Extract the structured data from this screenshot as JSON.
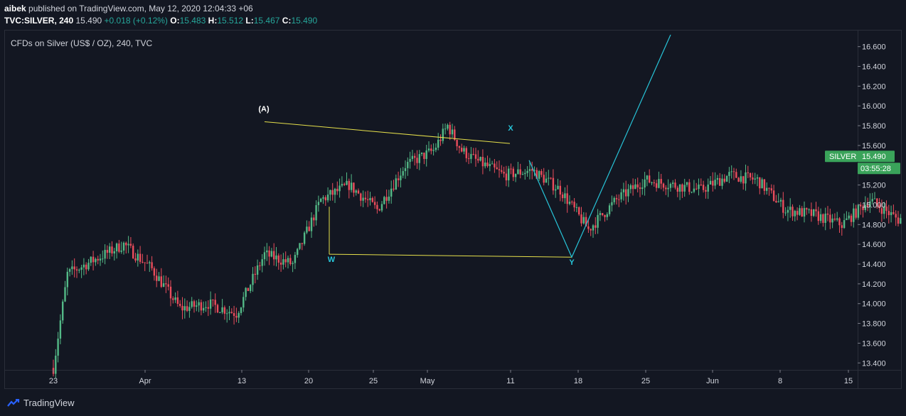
{
  "header": {
    "author": "aibek",
    "published_text": " published on TradingView.com, May 12, 2020 12:04:33 +06",
    "symbol": "TVC:SILVER, 240",
    "last": "15.490",
    "change": "+0.018 (+0.12%)",
    "o_label": "O:",
    "o_value": "15.483",
    "h_label": "H:",
    "h_value": "15.512",
    "l_label": "L:",
    "l_value": "15.467",
    "c_label": "C:",
    "c_value": "15.490"
  },
  "footer": {
    "brand": "TradingView"
  },
  "colors": {
    "background": "#131722",
    "up": "#26a69a",
    "up_candle": "#53b987",
    "down": "#eb4d5c",
    "wave_line": "#e6e04b",
    "projection": "#27c4d8",
    "price_badge": "#3aa35a"
  },
  "chart_data": {
    "type": "candlestick",
    "title": "CFDs on Silver (US$ / OZ), 240, TVC",
    "instrument": "SILVER",
    "y_ticks": [
      "16.600",
      "16.400",
      "16.200",
      "16.000",
      "15.800",
      "15.600",
      "15.400",
      "15.200",
      "15.000",
      "14.800",
      "14.600",
      "14.400",
      "14.200",
      "14.000",
      "13.800",
      "13.600",
      "13.400"
    ],
    "ylim": [
      13.33,
      16.77
    ],
    "x_ticks": [
      "23",
      "Apr",
      "13",
      "20",
      "25",
      "May",
      "11",
      "18",
      "25",
      "Jun",
      "8",
      "15"
    ],
    "price_label": "15.490",
    "countdown": "03:55:28",
    "price_path": [
      [
        "2020-03-23",
        13.35
      ],
      [
        "2020-03-24",
        14.3
      ],
      [
        "2020-03-26",
        14.45
      ],
      [
        "2020-03-28",
        14.6
      ],
      [
        "2020-03-30",
        14.35
      ],
      [
        "2020-04-01",
        13.95
      ],
      [
        "2020-04-03",
        14.0
      ],
      [
        "2020-04-05",
        13.9
      ],
      [
        "2020-04-07",
        14.5
      ],
      [
        "2020-04-09",
        14.4
      ],
      [
        "2020-04-11",
        15.05
      ],
      [
        "2020-04-13",
        15.2
      ],
      [
        "2020-04-15",
        14.95
      ],
      [
        "2020-04-17",
        15.4
      ],
      [
        "2020-04-19",
        15.55
      ],
      [
        "2020-04-20",
        15.8
      ],
      [
        "2020-04-21",
        15.55
      ],
      [
        "2020-04-22",
        15.45
      ],
      [
        "2020-04-24",
        15.3
      ],
      [
        "2020-04-26",
        15.35
      ],
      [
        "2020-04-28",
        15.15
      ],
      [
        "2020-04-30",
        14.75
      ],
      [
        "2020-05-02",
        15.05
      ],
      [
        "2020-05-04",
        15.25
      ],
      [
        "2020-05-06",
        15.2
      ],
      [
        "2020-05-08",
        15.15
      ],
      [
        "2020-05-10",
        15.3
      ],
      [
        "2020-05-12",
        15.25
      ],
      [
        "2020-05-14",
        14.95
      ],
      [
        "2020-05-16",
        14.9
      ],
      [
        "2020-05-18",
        14.8
      ],
      [
        "2020-05-20",
        15.05
      ],
      [
        "2020-05-22",
        14.85
      ],
      [
        "2020-05-24",
        15.0
      ],
      [
        "2020-05-26",
        15.45
      ],
      [
        "2020-05-28",
        15.55
      ],
      [
        "2020-05-30",
        15.5
      ],
      [
        "2020-06-01",
        15.49
      ]
    ],
    "annotations": [
      {
        "label": "(A)",
        "x": "2020-04-20",
        "y": 15.84,
        "color": "#ffffff"
      },
      {
        "label": "W",
        "x": "2020-04-30",
        "y": 14.5,
        "color": "#27c4d8"
      },
      {
        "label": "X",
        "x": "2020-05-30",
        "y": 15.62,
        "color": "#27c4d8"
      },
      {
        "label": "Y",
        "x": "2020-06-10",
        "y": 14.47,
        "color": "#27c4d8"
      }
    ]
  }
}
